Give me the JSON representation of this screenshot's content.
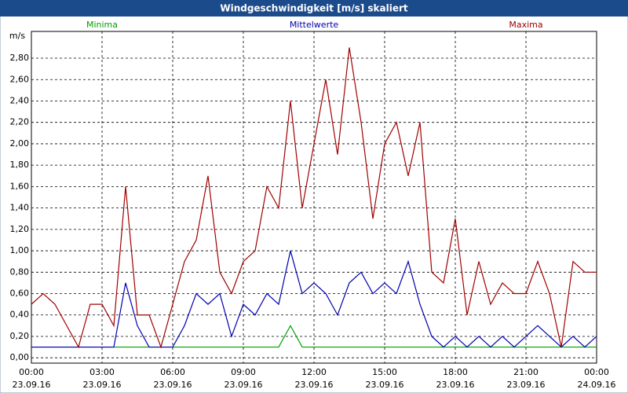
{
  "chart_data": {
    "type": "line",
    "title": "Windgeschwindigkeit [m/s] skaliert",
    "y_label": "m/s",
    "x": [
      0,
      0.5,
      1,
      1.5,
      2,
      2.5,
      3,
      3.5,
      4,
      4.5,
      5,
      5.5,
      6,
      6.5,
      7,
      7.5,
      8,
      8.5,
      9,
      9.5,
      10,
      10.5,
      11,
      11.5,
      12,
      12.5,
      13,
      13.5,
      14,
      14.5,
      15,
      15.5,
      16,
      16.5,
      17,
      17.5,
      18,
      18.5,
      19,
      19.5,
      20,
      20.5,
      21,
      21.5,
      22,
      22.5,
      23,
      23.5,
      24
    ],
    "series": [
      {
        "name": "Minima",
        "color": "#00a000",
        "values": [
          0.1,
          0.1,
          0.1,
          0.1,
          0.1,
          0.1,
          0.1,
          0.1,
          0.1,
          0.1,
          0.1,
          0.1,
          0.1,
          0.1,
          0.1,
          0.1,
          0.1,
          0.1,
          0.1,
          0.1,
          0.1,
          0.1,
          0.3,
          0.1,
          0.1,
          0.1,
          0.1,
          0.1,
          0.1,
          0.1,
          0.1,
          0.1,
          0.1,
          0.1,
          0.1,
          0.1,
          0.1,
          0.1,
          0.1,
          0.1,
          0.1,
          0.1,
          0.1,
          0.1,
          0.1,
          0.1,
          0.1,
          0.1,
          0.1
        ]
      },
      {
        "name": "Mittelwerte",
        "color": "#0000b0",
        "values": [
          0.1,
          0.1,
          0.1,
          0.1,
          0.1,
          0.1,
          0.1,
          0.1,
          0.7,
          0.3,
          0.1,
          0.1,
          0.1,
          0.3,
          0.6,
          0.5,
          0.6,
          0.2,
          0.5,
          0.4,
          0.6,
          0.5,
          1.0,
          0.6,
          0.7,
          0.6,
          0.4,
          0.7,
          0.8,
          0.6,
          0.7,
          0.6,
          0.9,
          0.5,
          0.2,
          0.1,
          0.2,
          0.1,
          0.2,
          0.1,
          0.2,
          0.1,
          0.2,
          0.3,
          0.2,
          0.1,
          0.2,
          0.1,
          0.2
        ]
      },
      {
        "name": "Maxima",
        "color": "#a00000",
        "values": [
          0.5,
          0.6,
          0.5,
          0.3,
          0.1,
          0.5,
          0.5,
          0.3,
          1.6,
          0.4,
          0.4,
          0.1,
          0.5,
          0.9,
          1.1,
          1.7,
          0.8,
          0.6,
          0.9,
          1.0,
          1.6,
          1.4,
          2.4,
          1.4,
          2.0,
          2.6,
          1.9,
          2.9,
          2.2,
          1.3,
          2.0,
          2.2,
          1.7,
          2.2,
          0.8,
          0.7,
          1.3,
          0.4,
          0.9,
          0.5,
          0.7,
          0.6,
          0.6,
          0.9,
          0.6,
          0.1,
          0.9,
          0.8,
          0.8
        ]
      }
    ],
    "xlim": [
      0,
      24
    ],
    "xticks": [
      {
        "value": 0,
        "label": "00:00"
      },
      {
        "value": 3,
        "label": "03:00"
      },
      {
        "value": 6,
        "label": "06:00"
      },
      {
        "value": 9,
        "label": "09:00"
      },
      {
        "value": 12,
        "label": "12:00"
      },
      {
        "value": 15,
        "label": "15:00"
      },
      {
        "value": 18,
        "label": "18:00"
      },
      {
        "value": 21,
        "label": "21:00"
      },
      {
        "value": 24,
        "label": "00:00"
      }
    ],
    "xtick_dates": [
      "23.09.16",
      "23.09.16",
      "23.09.16",
      "23.09.16",
      "23.09.16",
      "23.09.16",
      "23.09.16",
      "23.09.16",
      "24.09.16"
    ],
    "ylim": [
      -0.05,
      3.05
    ],
    "yticks": [
      {
        "value": 0,
        "label": "0,00"
      },
      {
        "value": 0.2,
        "label": "0,20"
      },
      {
        "value": 0.4,
        "label": "0,40"
      },
      {
        "value": 0.6,
        "label": "0,60"
      },
      {
        "value": 0.8,
        "label": "0,80"
      },
      {
        "value": 1,
        "label": "1,00"
      },
      {
        "value": 1.2,
        "label": "1,20"
      },
      {
        "value": 1.4,
        "label": "1,40"
      },
      {
        "value": 1.6,
        "label": "1,60"
      },
      {
        "value": 1.8,
        "label": "1,80"
      },
      {
        "value": 2,
        "label": "2,00"
      },
      {
        "value": 2.2,
        "label": "2,20"
      },
      {
        "value": 2.4,
        "label": "2,40"
      },
      {
        "value": 2.6,
        "label": "2,60"
      },
      {
        "value": 2.8,
        "label": "2,80"
      }
    ],
    "grid": true
  }
}
